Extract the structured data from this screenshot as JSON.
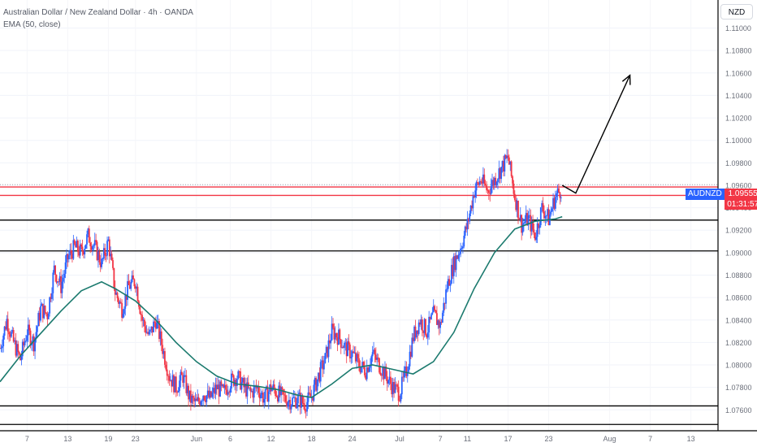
{
  "header": {
    "title": "Australian Dollar / New Zealand Dollar · 4h · OANDA",
    "indicator": "EMA (50, close)"
  },
  "currency_button": "NZD",
  "price_tag": {
    "symbol": "AUDNZD",
    "price": "1.09555",
    "countdown": "01:31:57"
  },
  "colors": {
    "up_candle": "#2962ff",
    "down_candle": "#f23645",
    "ema": "#1b7a6e",
    "resistance": "#f23645",
    "support": "#000000"
  },
  "chart_data": {
    "type": "candlestick",
    "symbol": "AUDNZD",
    "timeframe": "4h",
    "source": "OANDA",
    "y_range": [
      1.0745,
      1.1125
    ],
    "y_ticks": [
      "1.11000",
      "1.10800",
      "1.10600",
      "1.10400",
      "1.10200",
      "1.10000",
      "1.09800",
      "1.09600",
      "1.09400",
      "1.09200",
      "1.09000",
      "1.08800",
      "1.08600",
      "1.08400",
      "1.08200",
      "1.08000",
      "1.07800",
      "1.07600"
    ],
    "x_ticks": [
      {
        "label": "7",
        "day": 7
      },
      {
        "label": "13",
        "day": 13
      },
      {
        "label": "19",
        "day": 19
      },
      {
        "label": "23",
        "day": 23
      },
      {
        "label": "Jun",
        "day": 32
      },
      {
        "label": "6",
        "day": 37
      },
      {
        "label": "12",
        "day": 43
      },
      {
        "label": "18",
        "day": 49
      },
      {
        "label": "24",
        "day": 55
      },
      {
        "label": "Jul",
        "day": 62
      },
      {
        "label": "7",
        "day": 68
      },
      {
        "label": "11",
        "day": 72
      },
      {
        "label": "17",
        "day": 78
      },
      {
        "label": "23",
        "day": 84
      },
      {
        "label": "Aug",
        "day": 93
      },
      {
        "label": "7",
        "day": 99
      },
      {
        "label": "13",
        "day": 105
      }
    ],
    "x_range": [
      3,
      109
    ],
    "close_path": [
      [
        3,
        1.0815
      ],
      [
        4,
        1.084
      ],
      [
        5,
        1.082
      ],
      [
        6,
        1.0805
      ],
      [
        7,
        1.083
      ],
      [
        8,
        1.082
      ],
      [
        9,
        1.085
      ],
      [
        10,
        1.0845
      ],
      [
        11,
        1.0885
      ],
      [
        12,
        1.087
      ],
      [
        13,
        1.0895
      ],
      [
        14,
        1.0905
      ],
      [
        15,
        1.09
      ],
      [
        16,
        1.0915
      ],
      [
        17,
        1.0905
      ],
      [
        18,
        1.089
      ],
      [
        19,
        1.091
      ],
      [
        20,
        1.0865
      ],
      [
        21,
        1.085
      ],
      [
        22,
        1.087
      ],
      [
        23,
        1.0875
      ],
      [
        24,
        1.084
      ],
      [
        25,
        1.0825
      ],
      [
        26,
        1.084
      ],
      [
        27,
        1.0815
      ],
      [
        28,
        1.079
      ],
      [
        29,
        1.078
      ],
      [
        30,
        1.079
      ],
      [
        31,
        1.077
      ],
      [
        32,
        1.0765
      ],
      [
        33,
        1.0775
      ],
      [
        34,
        1.077
      ],
      [
        35,
        1.078
      ],
      [
        36,
        1.0775
      ],
      [
        37,
        1.0785
      ],
      [
        38,
        1.079
      ],
      [
        39,
        1.078
      ],
      [
        40,
        1.0775
      ],
      [
        41,
        1.078
      ],
      [
        42,
        1.077
      ],
      [
        43,
        1.078
      ],
      [
        44,
        1.0775
      ],
      [
        45,
        1.077
      ],
      [
        46,
        1.0768
      ],
      [
        47,
        1.077
      ],
      [
        48,
        1.0765
      ],
      [
        49,
        1.0772
      ],
      [
        50,
        1.079
      ],
      [
        51,
        1.0805
      ],
      [
        52,
        1.083
      ],
      [
        53,
        1.0825
      ],
      [
        54,
        1.0815
      ],
      [
        55,
        1.081
      ],
      [
        56,
        1.08
      ],
      [
        57,
        1.0795
      ],
      [
        58,
        1.081
      ],
      [
        59,
        1.08
      ],
      [
        60,
        1.079
      ],
      [
        61,
        1.078
      ],
      [
        62,
        1.0775
      ],
      [
        63,
        1.0795
      ],
      [
        64,
        1.0825
      ],
      [
        65,
        1.084
      ],
      [
        66,
        1.083
      ],
      [
        67,
        1.0845
      ],
      [
        68,
        1.0835
      ],
      [
        69,
        1.087
      ],
      [
        70,
        1.089
      ],
      [
        71,
        1.0905
      ],
      [
        72,
        1.0925
      ],
      [
        73,
        1.0955
      ],
      [
        74,
        1.0965
      ],
      [
        75,
        1.0955
      ],
      [
        76,
        1.0965
      ],
      [
        77,
        1.0975
      ],
      [
        78,
        1.0985
      ],
      [
        79,
        1.095
      ],
      [
        80,
        1.0925
      ],
      [
        81,
        1.093
      ],
      [
        82,
        1.0915
      ],
      [
        83,
        1.094
      ],
      [
        84,
        1.093
      ],
      [
        85,
        1.095
      ],
      [
        86,
        1.0958
      ]
    ],
    "ema50_path": [
      [
        3,
        1.0785
      ],
      [
        6,
        1.0808
      ],
      [
        9,
        1.0828
      ],
      [
        12,
        1.0848
      ],
      [
        15,
        1.0866
      ],
      [
        18,
        1.0874
      ],
      [
        20,
        1.0868
      ],
      [
        23,
        1.0857
      ],
      [
        26,
        1.084
      ],
      [
        29,
        1.082
      ],
      [
        32,
        1.0803
      ],
      [
        35,
        1.079
      ],
      [
        38,
        1.0783
      ],
      [
        41,
        1.0781
      ],
      [
        44,
        1.0778
      ],
      [
        47,
        1.0773
      ],
      [
        49,
        1.0771
      ],
      [
        52,
        1.0783
      ],
      [
        55,
        1.0797
      ],
      [
        58,
        1.08
      ],
      [
        61,
        1.0796
      ],
      [
        64,
        1.0792
      ],
      [
        67,
        1.0803
      ],
      [
        70,
        1.0829
      ],
      [
        73,
        1.0868
      ],
      [
        76,
        1.09
      ],
      [
        79,
        1.0921
      ],
      [
        82,
        1.0928
      ],
      [
        85,
        1.093
      ],
      [
        86,
        1.0932
      ]
    ],
    "horizontal_levels": [
      {
        "price": 1.09585,
        "color": "red"
      },
      {
        "price": 1.0951,
        "color": "red"
      },
      {
        "price": 1.0929,
        "color": "black"
      },
      {
        "price": 1.09015,
        "color": "black"
      },
      {
        "price": 1.07635,
        "color": "black"
      },
      {
        "price": 1.0747,
        "color": "black"
      }
    ],
    "current_price": 1.09555,
    "projection_arrow": [
      [
        86,
        1.096
      ],
      [
        88,
        1.0953
      ],
      [
        96,
        1.1058
      ]
    ]
  }
}
